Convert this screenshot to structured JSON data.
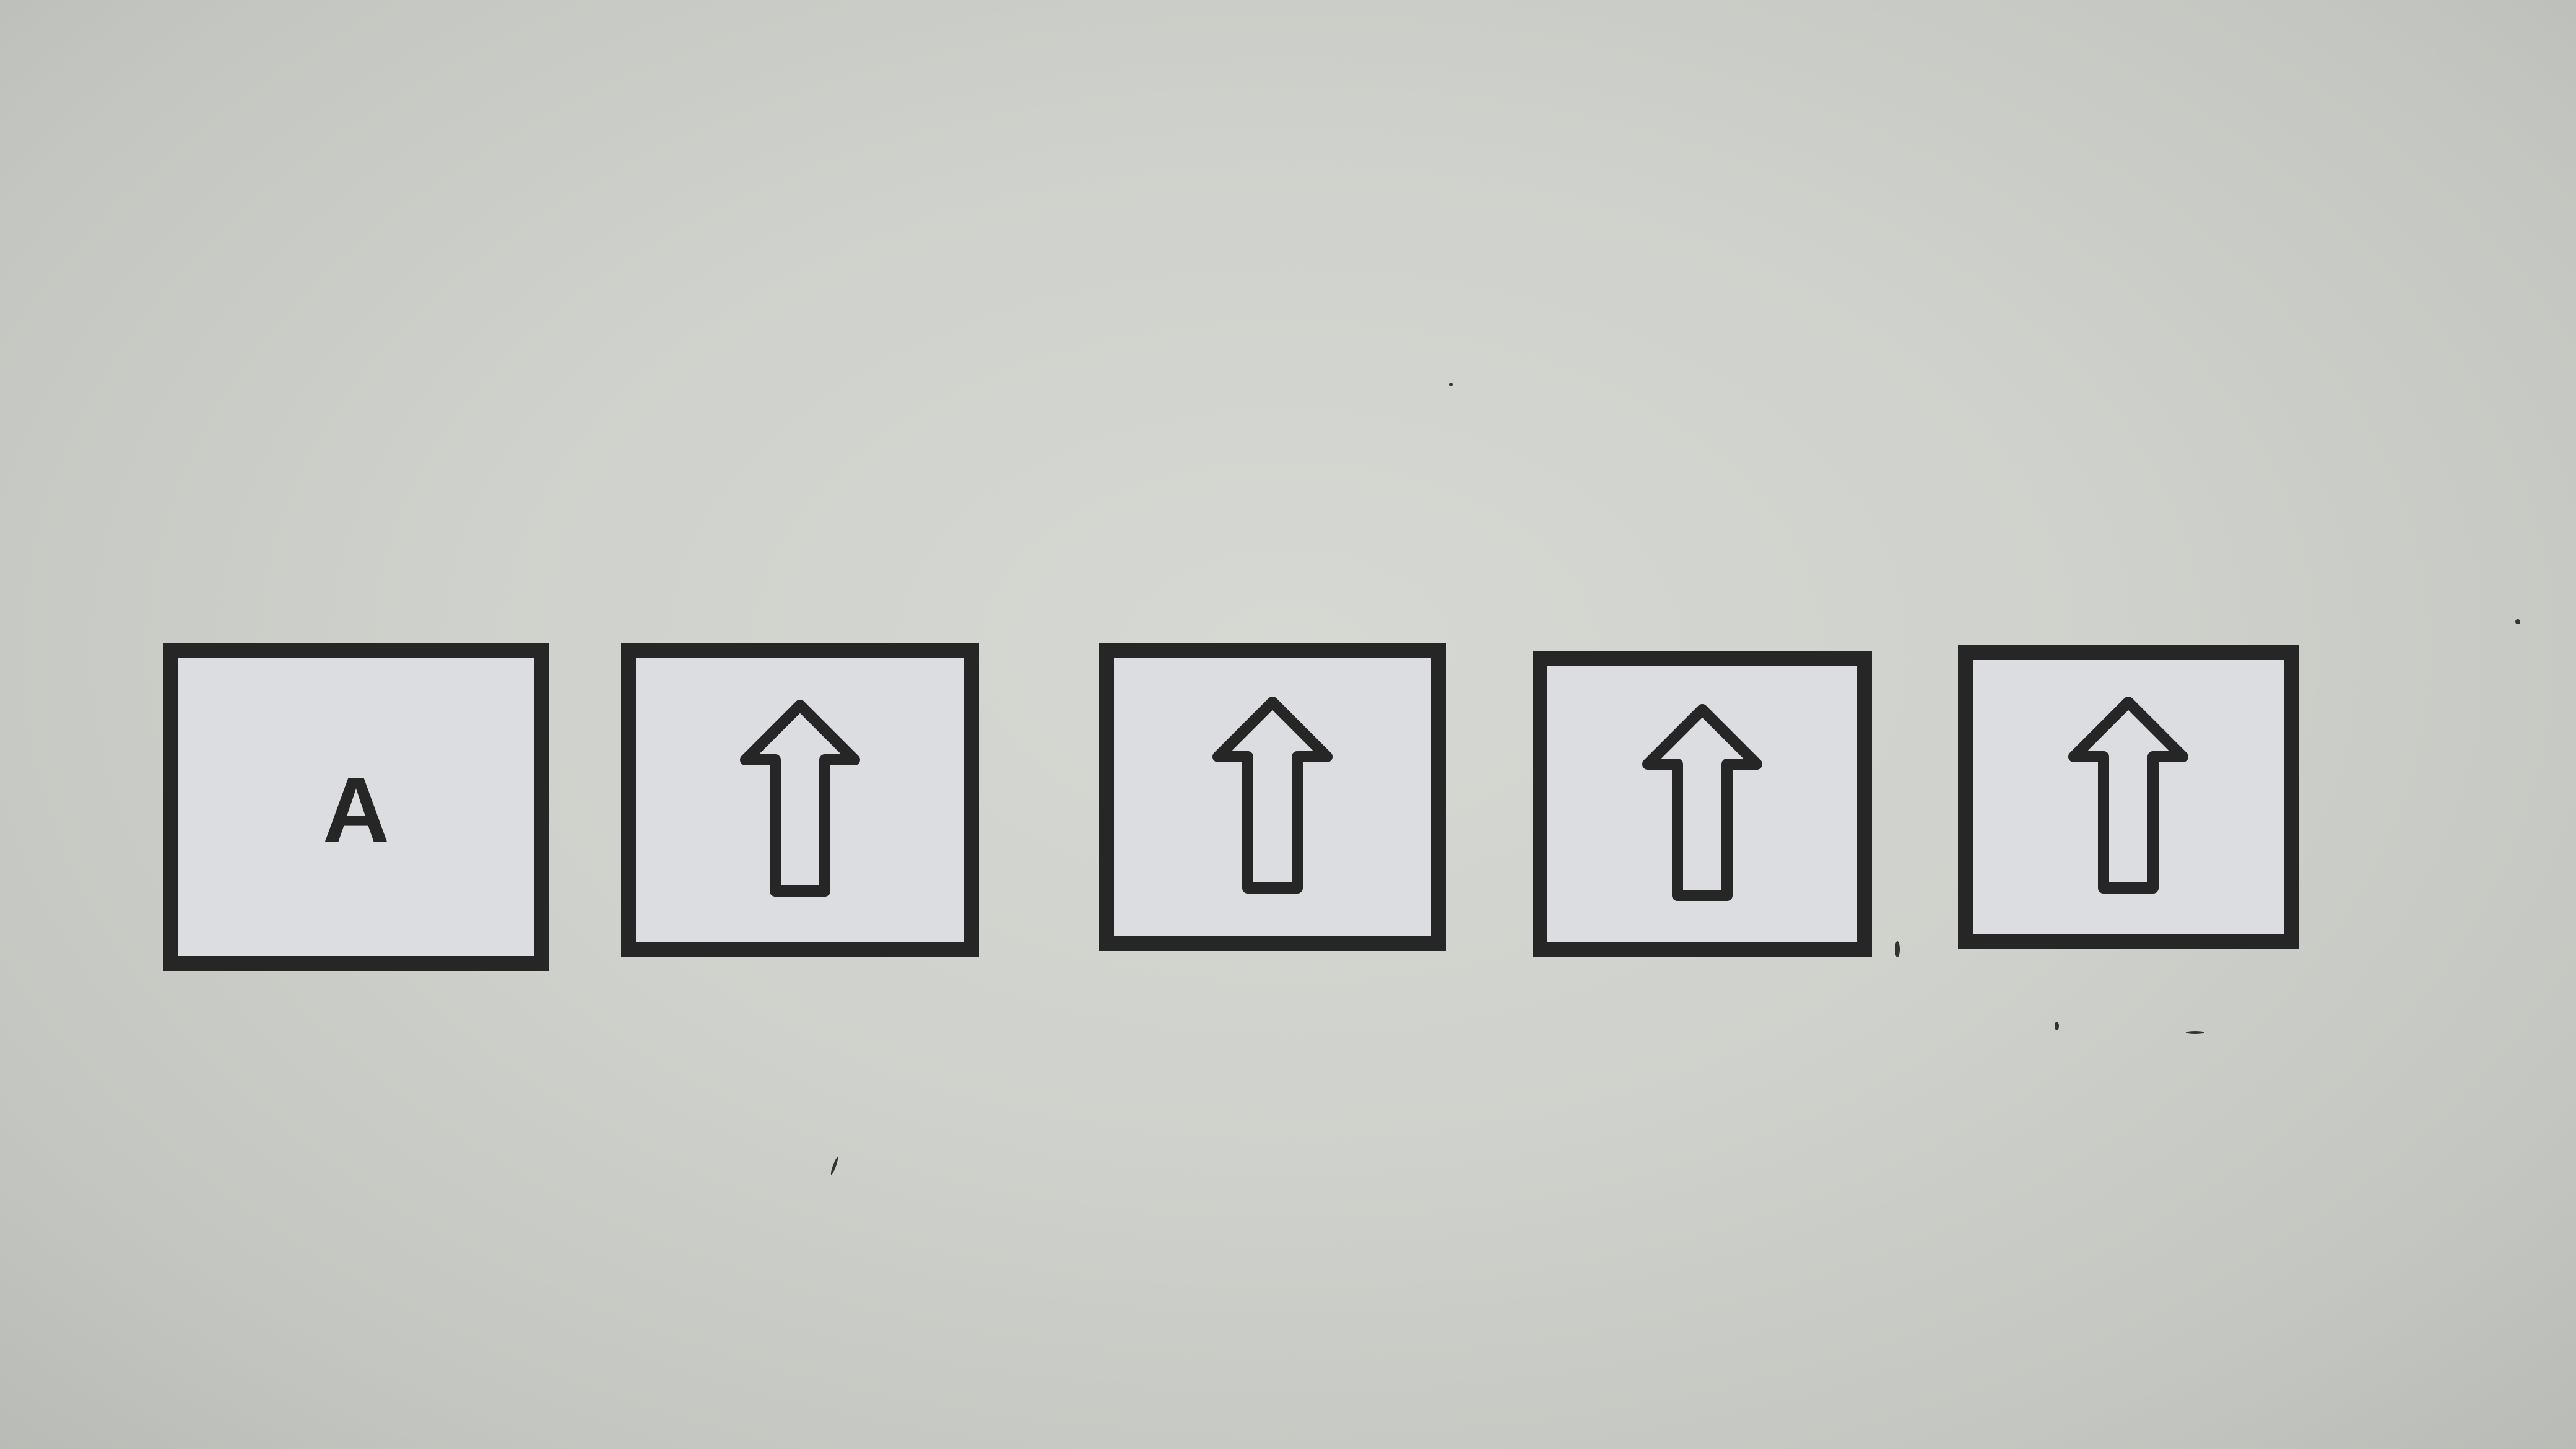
{
  "photo": {
    "background_color": "#cfd1cc",
    "ink_color": "#262626",
    "card_color": "#dcdde0"
  },
  "cards": [
    {
      "type": "letter",
      "text": "A",
      "icon": null
    },
    {
      "type": "icon",
      "text": null,
      "icon": "up-arrow-icon"
    },
    {
      "type": "icon",
      "text": null,
      "icon": "up-arrow-icon"
    },
    {
      "type": "icon",
      "text": null,
      "icon": "up-arrow-icon"
    },
    {
      "type": "icon",
      "text": null,
      "icon": "up-arrow-icon"
    }
  ]
}
